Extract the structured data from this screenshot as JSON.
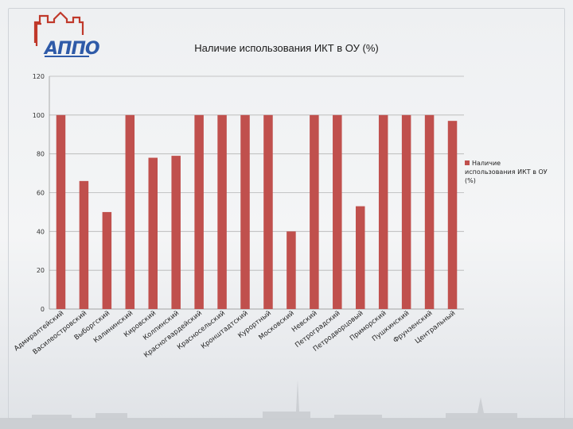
{
  "chart_data": {
    "type": "bar",
    "title": "Наличие использования ИКТ в ОУ (%)",
    "xlabel": "",
    "ylabel": "",
    "ylim": [
      0,
      120
    ],
    "yticks": [
      0,
      20,
      40,
      60,
      80,
      100,
      120
    ],
    "grid": true,
    "legend_position": "right",
    "categories": [
      "Адмиралтейский",
      "Василеостровский",
      "Выборгский",
      "Калининский",
      "Кировский",
      "Колпинский",
      "Красногвардейский",
      "Красносельский",
      "Кронштадтский",
      "Курортный",
      "Московский",
      "Невский",
      "Петроградский",
      "Петродворцовый",
      "Приморский",
      "Пушкинский",
      "Фрунзенский",
      "Центральный"
    ],
    "series": [
      {
        "name": "Наличие использования ИКТ в ОУ (%)",
        "color": "#c0504d",
        "values": [
          100,
          66,
          50,
          100,
          78,
          79,
          100,
          100,
          100,
          100,
          40,
          100,
          100,
          53,
          100,
          100,
          100,
          97
        ]
      }
    ]
  },
  "logo": {
    "text": "АППО",
    "icon": "building-outline-icon",
    "colors": {
      "outline": "#c0392b",
      "text": "#2e5aa8"
    }
  },
  "background": {
    "icon": "city-skyline-icon"
  }
}
